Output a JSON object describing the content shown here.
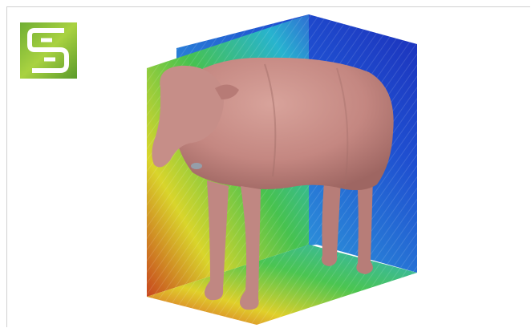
{
  "logo": {
    "icon": "s-logo-icon",
    "colors": {
      "outer": "#5c9c2c",
      "inner": "#9acb3a",
      "glyph": "#ffffff"
    }
  },
  "scene": {
    "subject": "sheep-model",
    "colors": {
      "field_warm": "#d23a1c",
      "field_mid": "#e3e32a",
      "field_green": "#3fbf4a",
      "field_cyan": "#2ab6d6",
      "field_blue": "#1f3fc6",
      "body": "#c98d88"
    }
  }
}
